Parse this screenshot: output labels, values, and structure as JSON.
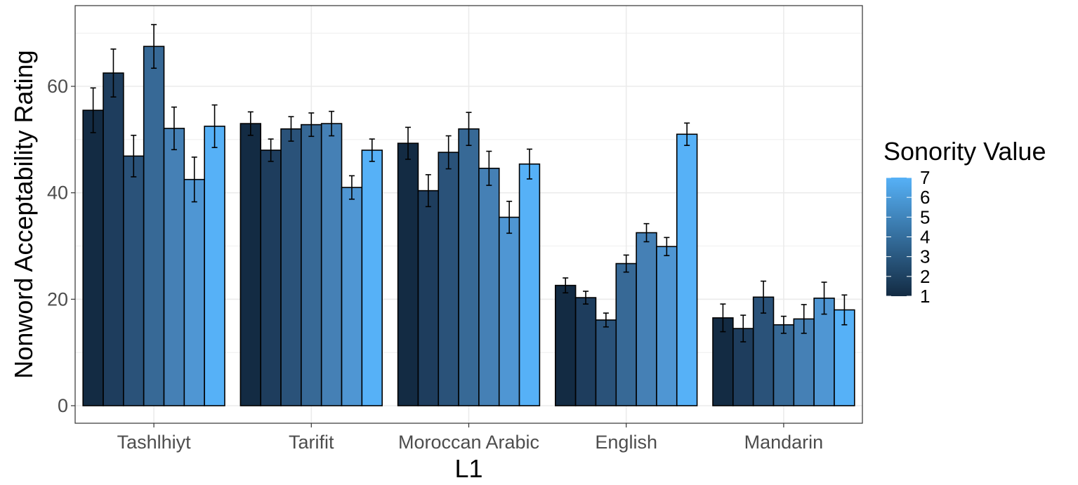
{
  "chart_data": {
    "type": "bar",
    "title": "",
    "xlabel": "L1",
    "ylabel": "Nonword Acceptability Rating",
    "ylim": [
      0,
      70
    ],
    "yticks": [
      0,
      20,
      40,
      60
    ],
    "grid": true,
    "legend_position": "right",
    "legend": {
      "title": "Sonority Value",
      "type": "colorbar",
      "min": 1,
      "max": 7,
      "labels": [
        "7",
        "6",
        "5",
        "4",
        "3",
        "2",
        "1"
      ]
    },
    "categories": [
      "Tashlhiyt",
      "Tarifit",
      "Moroccan Arabic",
      "English",
      "Mandarin"
    ],
    "series": [
      {
        "sonority": 1,
        "color": "#132b43",
        "values": [
          55.5,
          53.0,
          49.3,
          22.6,
          16.5
        ],
        "error": [
          4.2,
          2.2,
          3.0,
          1.4,
          2.6
        ]
      },
      {
        "sonority": 2,
        "color": "#1e3d5d",
        "values": [
          62.5,
          48.0,
          40.4,
          20.3,
          14.5
        ],
        "error": [
          4.5,
          2.1,
          3.0,
          1.2,
          2.5
        ]
      },
      {
        "sonority": 3,
        "color": "#2a5279",
        "values": [
          46.9,
          52.0,
          47.6,
          16.1,
          20.4
        ],
        "error": [
          3.9,
          2.3,
          3.1,
          1.3,
          3.0
        ]
      },
      {
        "sonority": 4,
        "color": "#376996",
        "values": [
          67.5,
          52.8,
          52.0,
          26.7,
          15.2
        ],
        "error": [
          4.1,
          2.2,
          3.1,
          1.6,
          1.6
        ]
      },
      {
        "sonority": 5,
        "color": "#4580b5",
        "values": [
          52.1,
          53.0,
          44.6,
          32.5,
          16.3
        ],
        "error": [
          4.0,
          2.3,
          3.2,
          1.7,
          2.7
        ]
      },
      {
        "sonority": 6,
        "color": "#4f96d3",
        "values": [
          42.5,
          41.0,
          35.4,
          29.9,
          20.2
        ],
        "error": [
          4.2,
          2.2,
          3.0,
          1.7,
          3.0
        ]
      },
      {
        "sonority": 7,
        "color": "#56b1f7",
        "values": [
          52.5,
          48.0,
          45.4,
          51.0,
          18.0
        ],
        "error": [
          4.0,
          2.1,
          2.8,
          2.1,
          2.8
        ]
      }
    ]
  }
}
